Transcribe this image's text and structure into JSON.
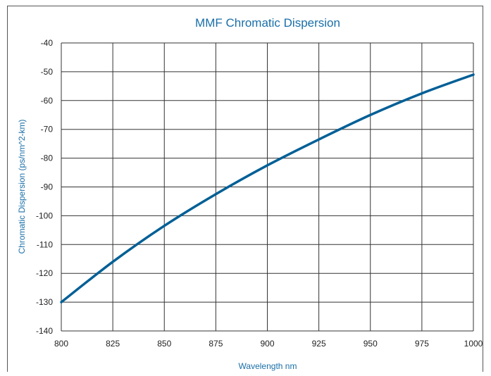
{
  "colors": {
    "accent": "#1a6fa8",
    "grid": "#333333",
    "curve": "#005f96"
  },
  "chart_data": {
    "type": "line",
    "title": "MMF Chromatic Dispersion",
    "xlabel": "Wavelength nm",
    "ylabel": "Chromatic Dispersion (ps/nm^2-km)",
    "xlim": [
      800,
      1000
    ],
    "ylim": [
      -140,
      -40
    ],
    "x_ticks": [
      "800",
      "825",
      "850",
      "875",
      "900",
      "925",
      "950",
      "975",
      "1000"
    ],
    "y_ticks": [
      "-40",
      "-50",
      "-60",
      "-70",
      "-80",
      "-90",
      "-100",
      "-110",
      "-120",
      "-130",
      "-140"
    ],
    "grid": true,
    "series": [
      {
        "x": [
          800,
          825,
          850,
          875,
          900,
          925,
          950,
          975,
          1000
        ],
        "values": [
          -130,
          -116,
          -103.5,
          -92.5,
          -82.5,
          -73.5,
          -65,
          -57.5,
          -51
        ]
      }
    ]
  }
}
